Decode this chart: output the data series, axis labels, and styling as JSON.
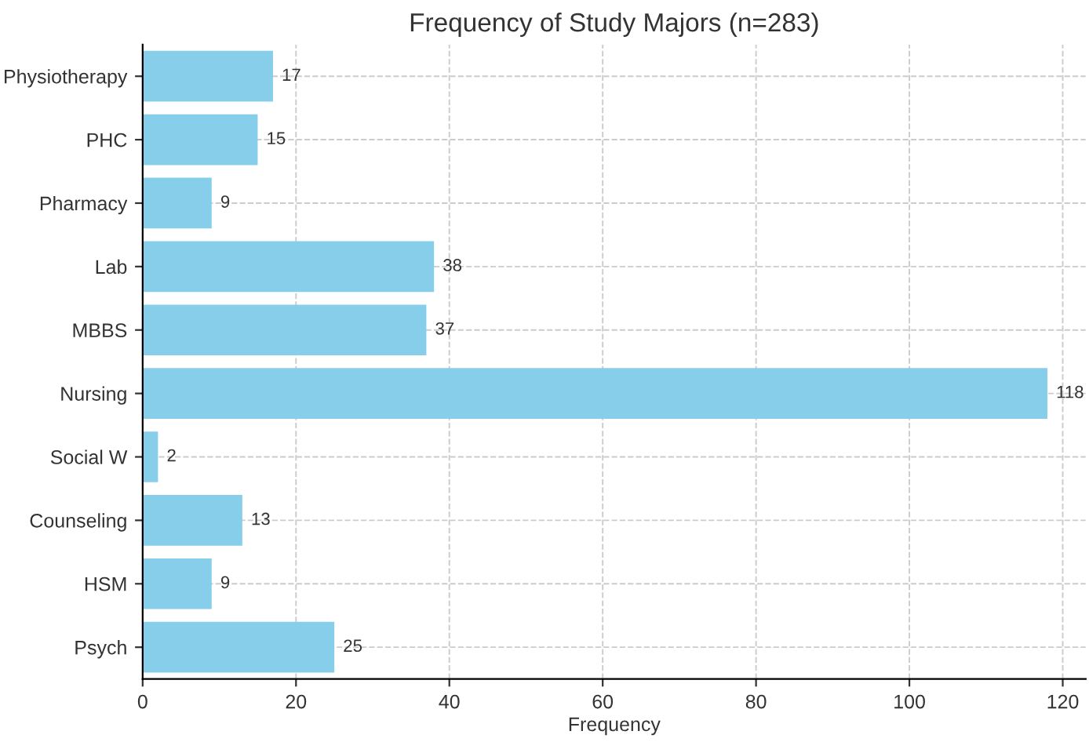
{
  "chart_data": {
    "type": "bar",
    "orientation": "horizontal",
    "title": "Frequency of Study Majors (n=283)",
    "xlabel": "Frequency",
    "categories": [
      "Physiotherapy",
      "PHC",
      "Pharmacy",
      "Lab",
      "MBBS",
      "Nursing",
      "Social W",
      "Counseling",
      "HSM",
      "Psych"
    ],
    "values": [
      17,
      15,
      9,
      38,
      37,
      118,
      2,
      13,
      9,
      25
    ],
    "color": "#87ceeb",
    "xlim": [
      0,
      123
    ],
    "xticks": [
      0,
      20,
      40,
      60,
      80,
      100,
      120
    ],
    "grid": true,
    "data_labels": true
  }
}
